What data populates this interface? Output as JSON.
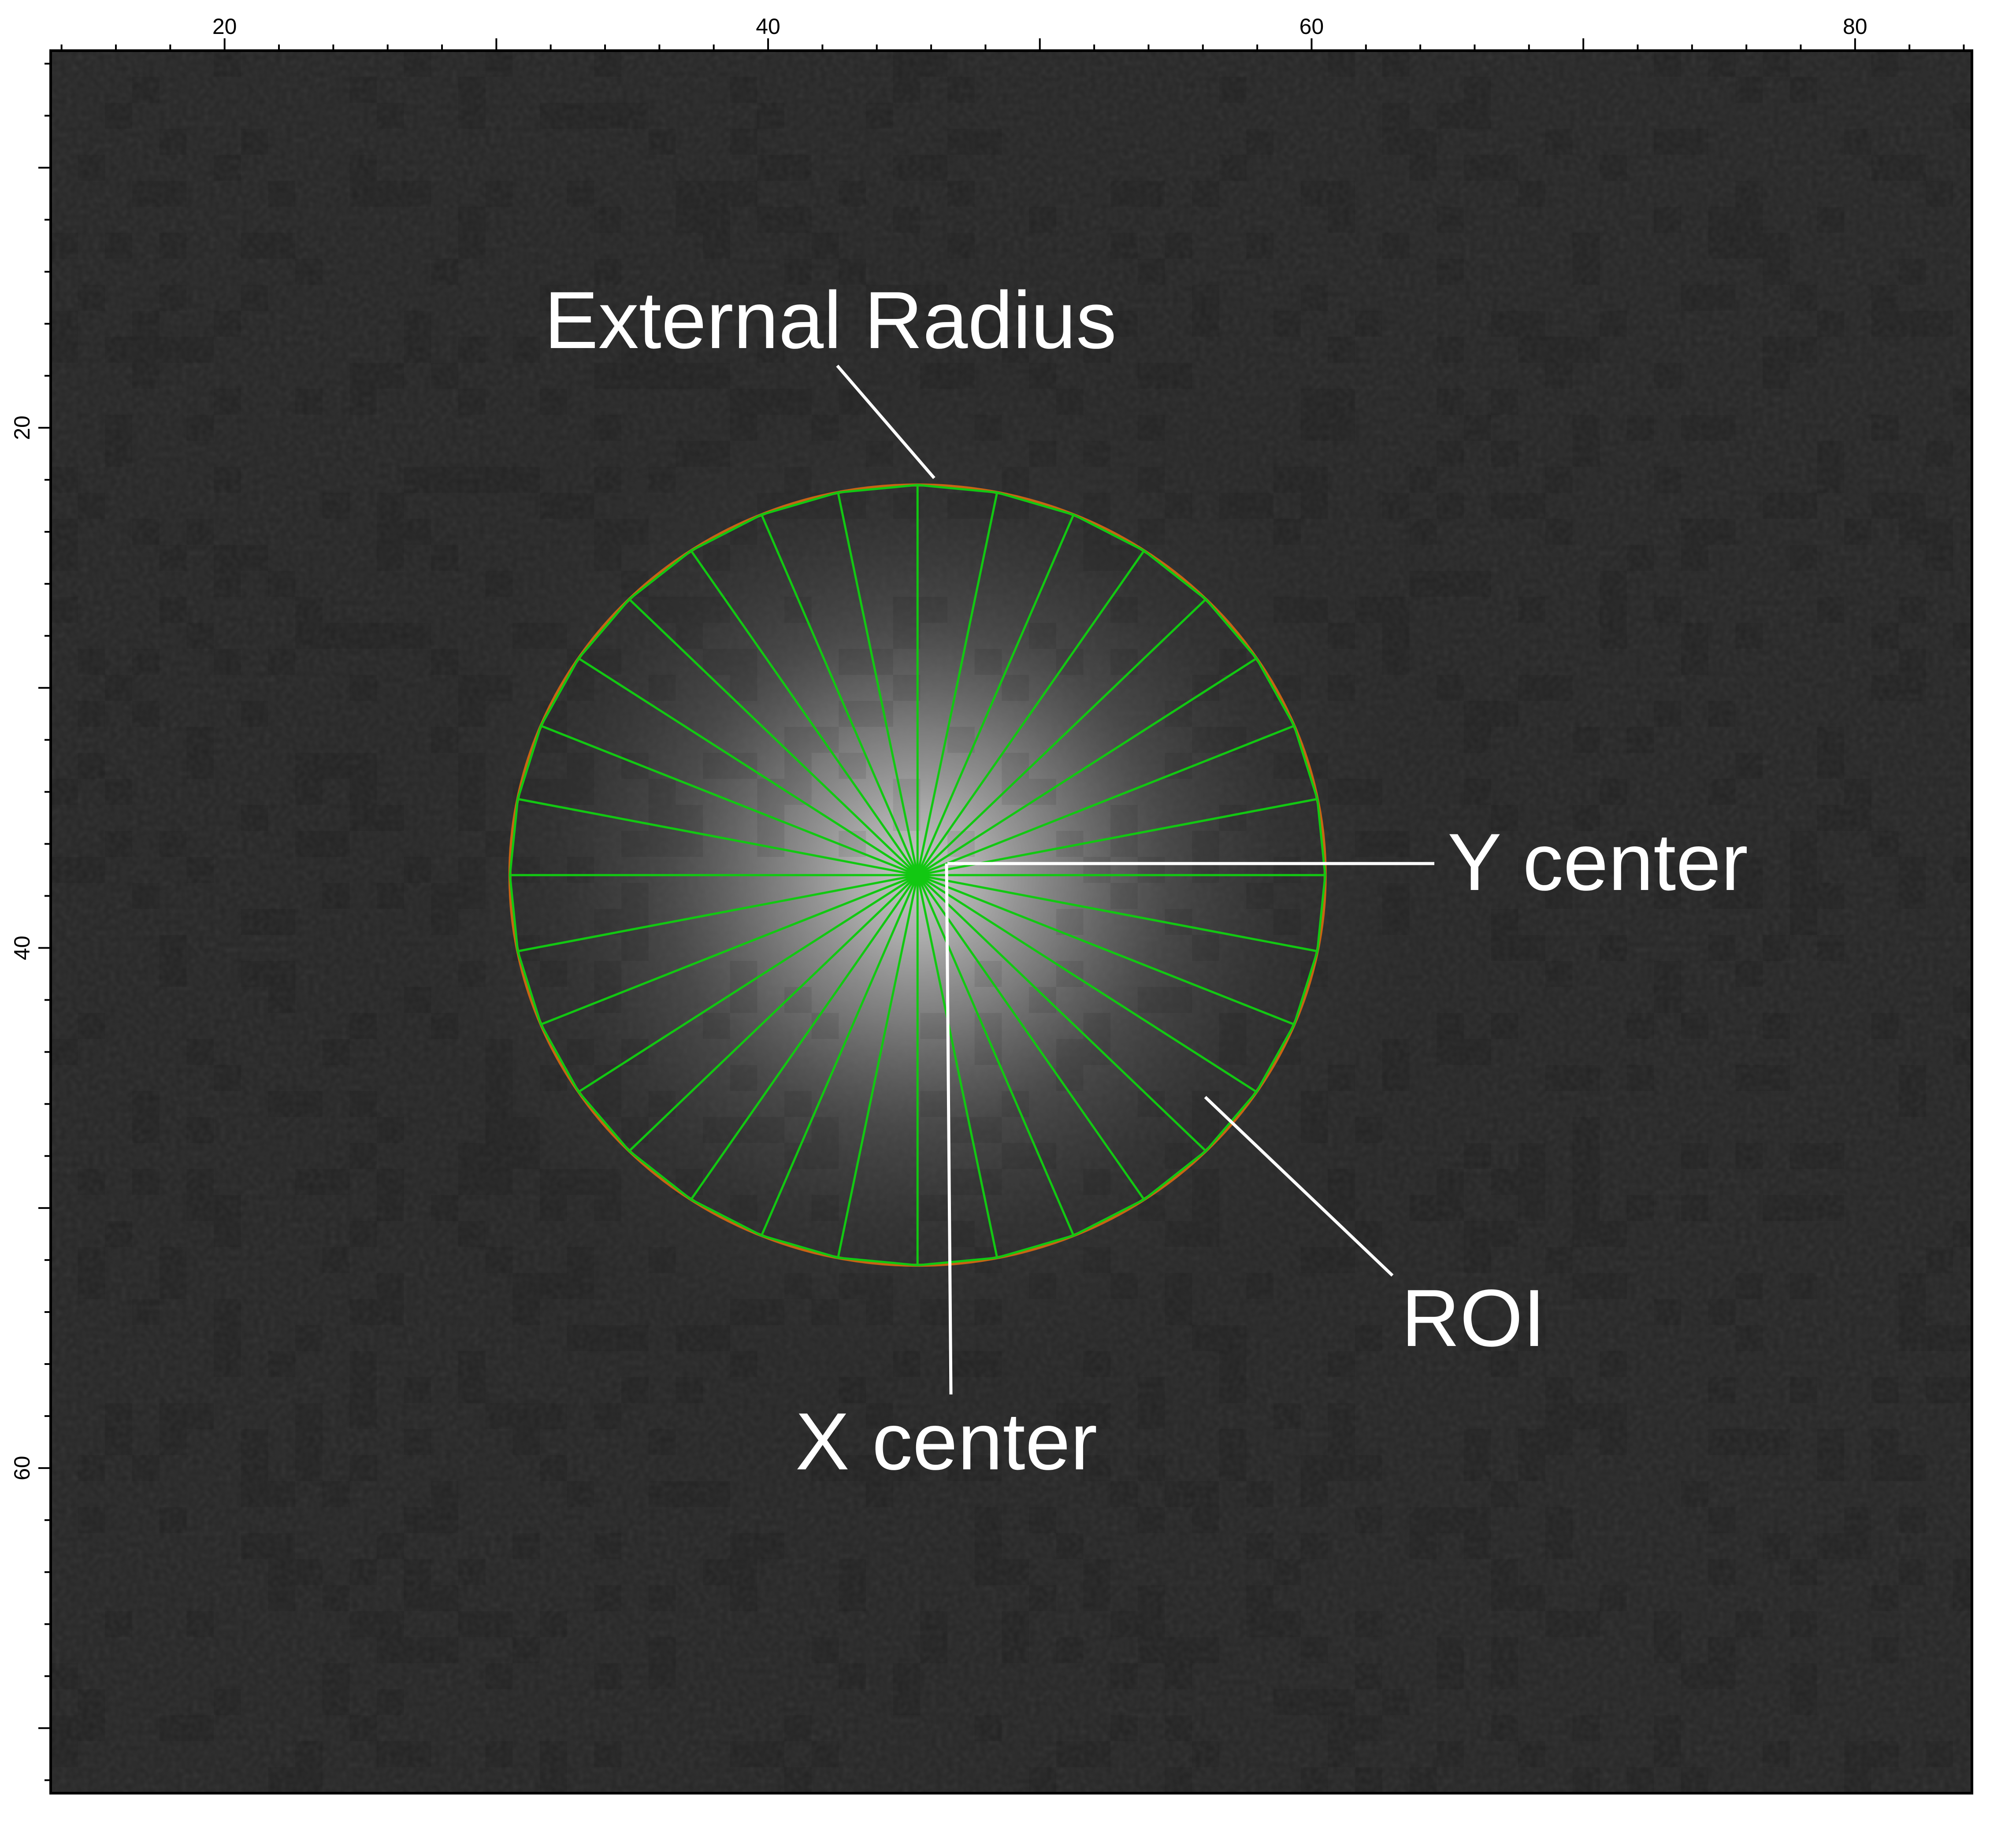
{
  "image": {
    "x_ticks": [
      {
        "value": 20,
        "label": "20"
      },
      {
        "value": 40,
        "label": "40"
      },
      {
        "value": 60,
        "label": "60"
      },
      {
        "value": 80,
        "label": "80"
      }
    ],
    "y_ticks": [
      {
        "value": 20,
        "label": "20"
      },
      {
        "value": 40,
        "label": "40"
      },
      {
        "value": 60,
        "label": "60"
      }
    ],
    "x_range": [
      13.6,
      84.3
    ],
    "y_range": [
      5.5,
      72.5
    ],
    "background_color": "#262626",
    "peak_color": "#c8c8c8"
  },
  "roi": {
    "shape": "circle",
    "center_x": 45.5,
    "center_y": 37.2,
    "radius": 15,
    "spoke_count": 32,
    "spoke_color": "#12c812",
    "outline_color": "#c86414"
  },
  "annotations": {
    "external_radius": "External Radius",
    "y_center": "Y center",
    "roi": "ROI",
    "x_center": "X center"
  }
}
